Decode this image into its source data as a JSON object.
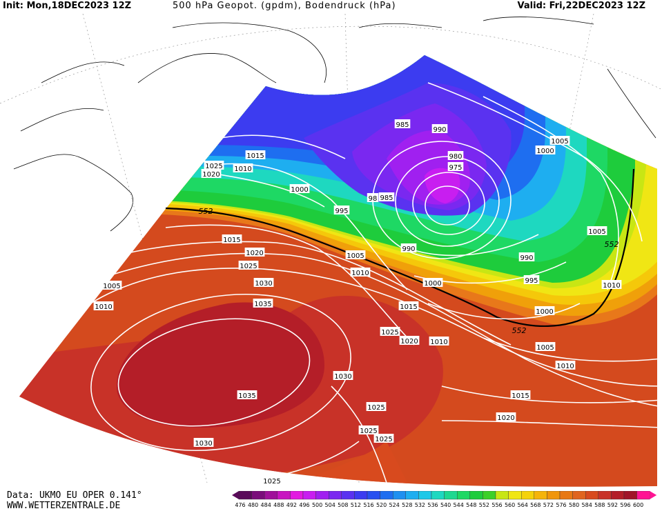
{
  "header": {
    "init": "Init: Mon,18DEC2023 12Z",
    "title": "500 hPa Geopot. (gpdm), Bodendruck (hPa)",
    "valid": "Valid: Fri,22DEC2023 12Z"
  },
  "footer": {
    "data_source": "Data: UKMO EU OPER 0.141°",
    "website": "WWW.WETTERZENTRALE.DE"
  },
  "colorbar": {
    "labels": [
      "476",
      "480",
      "484",
      "488",
      "492",
      "496",
      "500",
      "504",
      "508",
      "512",
      "516",
      "520",
      "524",
      "528",
      "532",
      "536",
      "540",
      "544",
      "548",
      "552",
      "556",
      "560",
      "564",
      "568",
      "572",
      "576",
      "580",
      "584",
      "588",
      "592",
      "596",
      "600"
    ],
    "colors": [
      "#5a0a5a",
      "#7a0c7a",
      "#a0109a",
      "#c814c0",
      "#e21ae0",
      "#c81ef0",
      "#a020f0",
      "#7a28f0",
      "#5a32f0",
      "#3c3cf0",
      "#2850f0",
      "#1e6ef0",
      "#1e90f0",
      "#1eaef0",
      "#1ec8e8",
      "#1ed8c0",
      "#1ed890",
      "#1ed864",
      "#1ecc3c",
      "#3cd028",
      "#c8e614",
      "#f0e614",
      "#f5d20a",
      "#f5b40a",
      "#f0960a",
      "#e87814",
      "#e0641e",
      "#d84a1e",
      "#c83228",
      "#b41e28",
      "#a01428",
      "#ff1493"
    ]
  },
  "map_labels": {
    "isobars": [
      {
        "text": "985"
      },
      {
        "text": "990"
      },
      {
        "text": "980"
      },
      {
        "text": "975"
      },
      {
        "text": "1015"
      },
      {
        "text": "1025"
      },
      {
        "text": "1010"
      },
      {
        "text": "1020"
      },
      {
        "text": "1000"
      },
      {
        "text": "98"
      },
      {
        "text": "985"
      },
      {
        "text": "995"
      },
      {
        "text": "1005"
      },
      {
        "text": "1000"
      },
      {
        "text": "1015"
      },
      {
        "text": "1020"
      },
      {
        "text": "1025"
      },
      {
        "text": "1005"
      },
      {
        "text": "1010"
      },
      {
        "text": "990"
      },
      {
        "text": "1005"
      },
      {
        "text": "1030"
      },
      {
        "text": "1010"
      },
      {
        "text": "1000"
      },
      {
        "text": "995"
      },
      {
        "text": "990"
      },
      {
        "text": "1035"
      },
      {
        "text": "1005"
      },
      {
        "text": "1015"
      },
      {
        "text": "1010"
      },
      {
        "text": "1000"
      },
      {
        "text": "1025"
      },
      {
        "text": "1020"
      },
      {
        "text": "1010"
      },
      {
        "text": "1005"
      },
      {
        "text": "1030"
      },
      {
        "text": "1010"
      },
      {
        "text": "1035"
      },
      {
        "text": "1015"
      },
      {
        "text": "1025"
      },
      {
        "text": "1020"
      },
      {
        "text": "1025"
      },
      {
        "text": "1030"
      },
      {
        "text": "1025"
      },
      {
        "text": "1025"
      }
    ],
    "geopotential_labels": [
      {
        "text": "552"
      },
      {
        "text": "552"
      },
      {
        "text": "552"
      }
    ]
  }
}
